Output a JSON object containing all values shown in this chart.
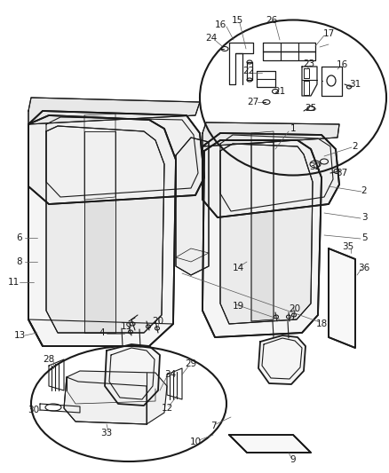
{
  "bg_color": "#ffffff",
  "line_color": "#1a1a1a",
  "fig_width": 4.38,
  "fig_height": 5.33,
  "dpi": 100,
  "gray": "#888888",
  "light_gray": "#cccccc"
}
